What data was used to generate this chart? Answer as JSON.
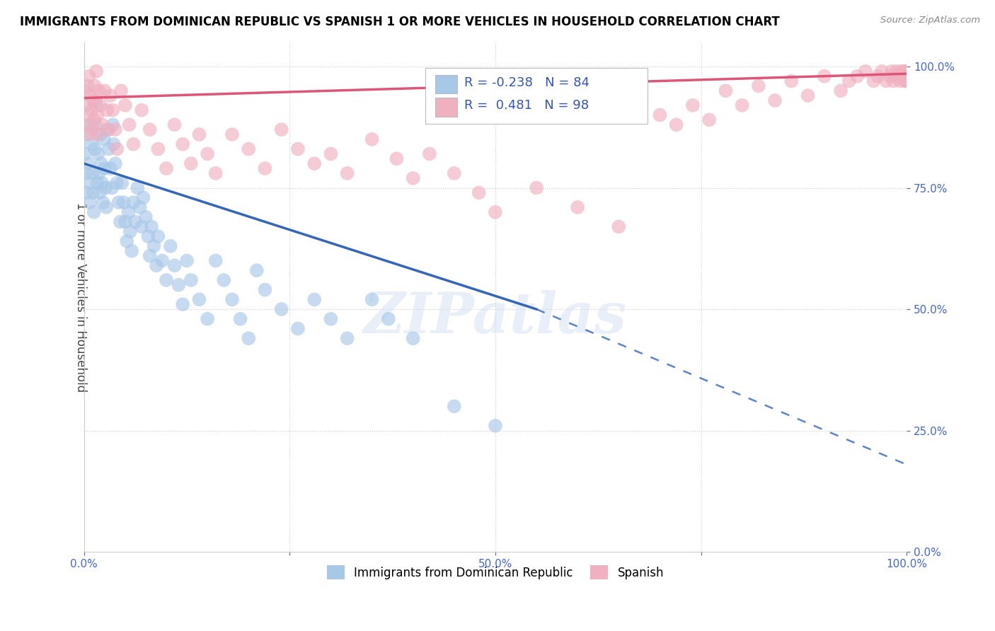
{
  "title": "IMMIGRANTS FROM DOMINICAN REPUBLIC VS SPANISH 1 OR MORE VEHICLES IN HOUSEHOLD CORRELATION CHART",
  "source": "Source: ZipAtlas.com",
  "ylabel": "1 or more Vehicles in Household",
  "xlim": [
    0.0,
    1.0
  ],
  "ylim": [
    0.0,
    1.05
  ],
  "xticks": [
    0.0,
    0.25,
    0.5,
    0.75,
    1.0
  ],
  "yticks": [
    0.0,
    0.25,
    0.5,
    0.75,
    1.0
  ],
  "xticklabels": [
    "0.0%",
    "",
    "50.0%",
    "",
    "100.0%"
  ],
  "yticklabels": [
    "0.0%",
    "25.0%",
    "50.0%",
    "75.0%",
    "100.0%"
  ],
  "blue_color": "#a8c8e8",
  "pink_color": "#f0b0c0",
  "blue_line_color": "#3366bb",
  "pink_line_color": "#dd5577",
  "r_blue": -0.238,
  "n_blue": 84,
  "r_pink": 0.481,
  "n_pink": 98,
  "legend_blue_label": "Immigrants from Dominican Republic",
  "legend_pink_label": "Spanish",
  "watermark": "ZIPatlas",
  "blue_line_x0": 0.0,
  "blue_line_y0": 0.8,
  "blue_line_x1": 0.55,
  "blue_line_y1": 0.5,
  "blue_line_dash_x1": 1.0,
  "blue_line_dash_y1": 0.18,
  "pink_line_x0": 0.0,
  "pink_line_y0": 0.935,
  "pink_line_x1": 1.0,
  "pink_line_y1": 0.985,
  "blue_scatter_x": [
    0.001,
    0.002,
    0.003,
    0.004,
    0.005,
    0.006,
    0.007,
    0.008,
    0.009,
    0.01,
    0.011,
    0.012,
    0.013,
    0.014,
    0.015,
    0.016,
    0.017,
    0.018,
    0.019,
    0.02,
    0.021,
    0.022,
    0.023,
    0.024,
    0.025,
    0.026,
    0.027,
    0.028,
    0.03,
    0.032,
    0.034,
    0.035,
    0.036,
    0.038,
    0.04,
    0.042,
    0.044,
    0.046,
    0.048,
    0.05,
    0.052,
    0.054,
    0.056,
    0.058,
    0.06,
    0.062,
    0.065,
    0.068,
    0.07,
    0.072,
    0.075,
    0.078,
    0.08,
    0.082,
    0.085,
    0.088,
    0.09,
    0.095,
    0.1,
    0.105,
    0.11,
    0.115,
    0.12,
    0.125,
    0.13,
    0.14,
    0.15,
    0.16,
    0.17,
    0.18,
    0.19,
    0.2,
    0.21,
    0.22,
    0.24,
    0.26,
    0.28,
    0.3,
    0.32,
    0.35,
    0.37,
    0.4,
    0.45,
    0.5
  ],
  "blue_scatter_y": [
    0.82,
    0.78,
    0.74,
    0.86,
    0.8,
    0.76,
    0.72,
    0.88,
    0.84,
    0.78,
    0.74,
    0.7,
    0.83,
    0.88,
    0.92,
    0.76,
    0.82,
    0.78,
    0.74,
    0.86,
    0.8,
    0.76,
    0.72,
    0.85,
    0.79,
    0.75,
    0.71,
    0.87,
    0.83,
    0.79,
    0.75,
    0.88,
    0.84,
    0.8,
    0.76,
    0.72,
    0.68,
    0.76,
    0.72,
    0.68,
    0.64,
    0.7,
    0.66,
    0.62,
    0.72,
    0.68,
    0.75,
    0.71,
    0.67,
    0.73,
    0.69,
    0.65,
    0.61,
    0.67,
    0.63,
    0.59,
    0.65,
    0.6,
    0.56,
    0.63,
    0.59,
    0.55,
    0.51,
    0.6,
    0.56,
    0.52,
    0.48,
    0.6,
    0.56,
    0.52,
    0.48,
    0.44,
    0.58,
    0.54,
    0.5,
    0.46,
    0.52,
    0.48,
    0.44,
    0.52,
    0.48,
    0.44,
    0.3,
    0.26
  ],
  "pink_scatter_x": [
    0.001,
    0.002,
    0.003,
    0.004,
    0.005,
    0.006,
    0.007,
    0.008,
    0.009,
    0.01,
    0.011,
    0.012,
    0.013,
    0.014,
    0.015,
    0.016,
    0.017,
    0.018,
    0.02,
    0.022,
    0.025,
    0.028,
    0.03,
    0.032,
    0.035,
    0.038,
    0.04,
    0.045,
    0.05,
    0.055,
    0.06,
    0.07,
    0.08,
    0.09,
    0.1,
    0.11,
    0.12,
    0.13,
    0.14,
    0.15,
    0.16,
    0.18,
    0.2,
    0.22,
    0.24,
    0.26,
    0.28,
    0.3,
    0.32,
    0.35,
    0.38,
    0.4,
    0.42,
    0.45,
    0.48,
    0.5,
    0.55,
    0.6,
    0.65,
    0.7,
    0.72,
    0.74,
    0.76,
    0.78,
    0.8,
    0.82,
    0.84,
    0.86,
    0.88,
    0.9,
    0.92,
    0.93,
    0.94,
    0.95,
    0.96,
    0.965,
    0.97,
    0.975,
    0.98,
    0.982,
    0.984,
    0.986,
    0.988,
    0.99,
    0.992,
    0.994,
    0.996,
    0.997,
    0.998,
    0.999,
    1.0,
    1.0,
    1.0,
    1.0,
    1.0,
    1.0,
    1.0,
    1.0
  ],
  "pink_scatter_y": [
    0.95,
    0.92,
    0.88,
    0.96,
    0.9,
    0.98,
    0.86,
    0.94,
    0.91,
    0.87,
    0.93,
    0.89,
    0.96,
    0.93,
    0.99,
    0.9,
    0.86,
    0.95,
    0.92,
    0.88,
    0.95,
    0.91,
    0.87,
    0.94,
    0.91,
    0.87,
    0.83,
    0.95,
    0.92,
    0.88,
    0.84,
    0.91,
    0.87,
    0.83,
    0.79,
    0.88,
    0.84,
    0.8,
    0.86,
    0.82,
    0.78,
    0.86,
    0.83,
    0.79,
    0.87,
    0.83,
    0.8,
    0.82,
    0.78,
    0.85,
    0.81,
    0.77,
    0.82,
    0.78,
    0.74,
    0.7,
    0.75,
    0.71,
    0.67,
    0.9,
    0.88,
    0.92,
    0.89,
    0.95,
    0.92,
    0.96,
    0.93,
    0.97,
    0.94,
    0.98,
    0.95,
    0.97,
    0.98,
    0.99,
    0.97,
    0.98,
    0.99,
    0.97,
    0.98,
    0.99,
    0.97,
    0.98,
    0.99,
    0.98,
    0.97,
    0.99,
    0.98,
    0.99,
    0.97,
    0.98,
    0.99,
    0.98,
    0.97,
    0.99,
    0.98,
    0.97,
    0.98,
    0.99
  ]
}
